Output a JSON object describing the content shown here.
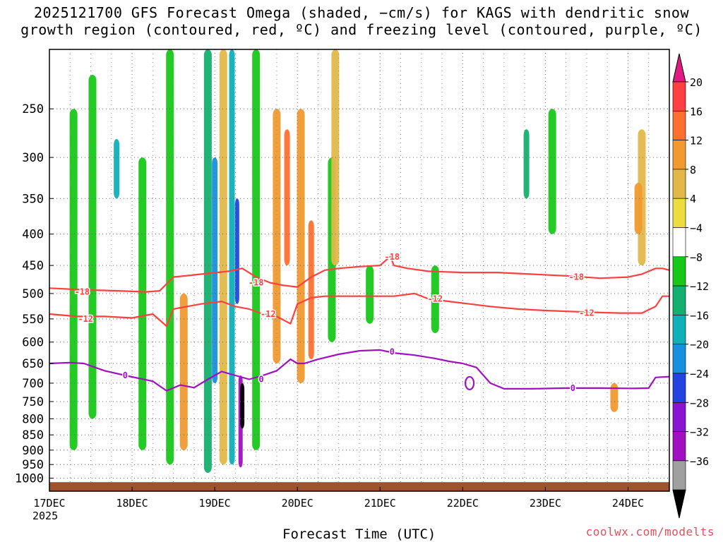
{
  "title_line1": "2025121700 GFS Forecast Omega (shaded, −cm/s) for KAGS with dendritic snow",
  "title_line2": "growth region (contoured, red, ºC) and freezing level (contoured, purple, ºC)",
  "credit": "coolwx.com/modelts",
  "chart_data": {
    "type": "heatmap",
    "title": "2025121700 GFS Forecast Omega (shaded, −cm/s) for KAGS with dendritic snow growth region (contoured, red, ºC) and freezing level (contoured, purple, ºC)",
    "xlabel": "Forecast Time (UTC)",
    "ylabel": "",
    "x_start": "17DEC 2025",
    "xlim_hours": [
      0,
      180
    ],
    "ylim_hpa": [
      1050,
      200
    ],
    "x_ticks": [
      {
        "label": "17DEC",
        "sublabel": "2025",
        "hour": 0
      },
      {
        "label": "18DEC",
        "hour": 24
      },
      {
        "label": "19DEC",
        "hour": 48
      },
      {
        "label": "20DEC",
        "hour": 72
      },
      {
        "label": "21DEC",
        "hour": 96
      },
      {
        "label": "22DEC",
        "hour": 120
      },
      {
        "label": "23DEC",
        "hour": 144
      },
      {
        "label": "24DEC",
        "hour": 168
      }
    ],
    "y_ticks": [
      250,
      300,
      350,
      400,
      450,
      500,
      550,
      600,
      650,
      700,
      750,
      800,
      850,
      900,
      950,
      1000
    ],
    "y_tick_labels": [
      "250",
      "300",
      "350",
      "400",
      "450",
      "500",
      "550",
      "600",
      "650",
      "700",
      "750",
      "800",
      "850",
      "900",
      "950",
      "1000"
    ],
    "grid": true,
    "colorbar": {
      "labels": [
        "20",
        "16",
        "12",
        "8",
        "4",
        "−4",
        "−8",
        "−12",
        "−16",
        "−20",
        "−24",
        "−28",
        "−32",
        "−36"
      ],
      "colors": [
        "#ff4040",
        "#ff7030",
        "#f09a30",
        "#e2b84a",
        "#ecdc40",
        "#ffffff",
        "#18c818",
        "#14b070",
        "#10b0b8",
        "#1890e0",
        "#2244e0",
        "#8a14d0",
        "#a010c0",
        "#a0a0a0"
      ],
      "top_arrow_color": "#e01a80",
      "bottom_arrow_color": "#000000"
    },
    "series": [
      {
        "name": "-18",
        "color": "#ff4040",
        "x": [
          0,
          10,
          20,
          28,
          32,
          36,
          44,
          52,
          56,
          60,
          64,
          68,
          72,
          76,
          80,
          84,
          90,
          96,
          99,
          100,
          104,
          110,
          120,
          130,
          140,
          150,
          160,
          168,
          172,
          176,
          178,
          180
        ],
        "y": [
          490,
          493,
          495,
          497,
          495,
          470,
          465,
          460,
          455,
          470,
          480,
          485,
          488,
          470,
          458,
          455,
          452,
          450,
          435,
          450,
          455,
          460,
          462,
          462,
          465,
          468,
          472,
          470,
          465,
          455,
          455,
          458
        ]
      },
      {
        "name": "-12",
        "color": "#ff4040",
        "x": [
          0,
          8,
          16,
          24,
          30,
          34,
          36,
          40,
          44,
          50,
          54,
          58,
          62,
          66,
          70,
          72,
          76,
          80,
          86,
          96,
          100,
          106,
          110,
          116,
          122,
          128,
          136,
          144,
          152,
          160,
          166,
          172,
          176,
          178,
          180
        ],
        "y": [
          540,
          545,
          545,
          548,
          540,
          565,
          530,
          525,
          520,
          515,
          525,
          530,
          540,
          545,
          560,
          520,
          508,
          505,
          505,
          505,
          505,
          500,
          510,
          515,
          520,
          525,
          530,
          533,
          535,
          537,
          538,
          538,
          525,
          505,
          505
        ]
      },
      {
        "name": "0",
        "color": "#a010c0",
        "x": [
          0,
          6,
          10,
          16,
          22,
          30,
          34,
          38,
          42,
          46,
          50,
          54,
          58,
          62,
          66,
          70,
          72,
          74,
          78,
          84,
          90,
          96,
          100,
          106,
          112,
          116,
          120,
          124,
          128,
          132,
          140,
          150,
          160,
          170,
          174,
          176,
          180
        ],
        "y": [
          650,
          648,
          650,
          668,
          680,
          695,
          720,
          705,
          712,
          690,
          670,
          680,
          690,
          680,
          668,
          640,
          650,
          650,
          640,
          628,
          620,
          618,
          625,
          630,
          638,
          645,
          650,
          660,
          700,
          715,
          715,
          713,
          713,
          714,
          713,
          685,
          683
        ]
      }
    ],
    "contour_labels": [
      {
        "text": "-18",
        "hour": 9.5,
        "hpa": 497
      },
      {
        "text": "-18",
        "hour": 60,
        "hpa": 480
      },
      {
        "text": "-18",
        "hour": 99.5,
        "hpa": 436
      },
      {
        "text": "-18",
        "hour": 153,
        "hpa": 470
      },
      {
        "text": "-12",
        "hour": 10.5,
        "hpa": 550
      },
      {
        "text": "-12",
        "hour": 63.5,
        "hpa": 540
      },
      {
        "text": "-12",
        "hour": 112,
        "hpa": 510
      },
      {
        "text": "-12",
        "hour": 156,
        "hpa": 538
      },
      {
        "text": "0",
        "hour": 22,
        "hpa": 680
      },
      {
        "text": "0",
        "hour": 61.5,
        "hpa": 690
      },
      {
        "text": "0",
        "hour": 99.5,
        "hpa": 622
      },
      {
        "text": "0",
        "hour": 152,
        "hpa": 713
      }
    ],
    "freezing_closed_contours": [
      {
        "hour": 122,
        "hpa": 700
      }
    ],
    "omega_regions": [
      {
        "hour": 7,
        "hpa": [
          250,
          900
        ],
        "value": -6
      },
      {
        "hour": 12.5,
        "hpa": [
          220,
          800
        ],
        "value": -6
      },
      {
        "hour": 19.5,
        "hpa": [
          280,
          350
        ],
        "value": -13
      },
      {
        "hour": 27,
        "hpa": [
          300,
          900
        ],
        "value": -6
      },
      {
        "hour": 35,
        "hpa": [
          200,
          950
        ],
        "value": -6
      },
      {
        "hour": 39,
        "hpa": [
          500,
          900
        ],
        "value": 10
      },
      {
        "hour": 46,
        "hpa": [
          200,
          980
        ],
        "value": -10
      },
      {
        "hour": 48,
        "hpa": [
          300,
          700
        ],
        "value": -18
      },
      {
        "hour": 50.5,
        "hpa": [
          200,
          950
        ],
        "value": 8
      },
      {
        "hour": 53,
        "hpa": [
          200,
          950
        ],
        "value": -14
      },
      {
        "hour": 54.5,
        "hpa": [
          350,
          520
        ],
        "value": -22
      },
      {
        "hour": 55.5,
        "hpa": [
          680,
          960
        ],
        "value": -30
      },
      {
        "hour": 56,
        "hpa": [
          700,
          830
        ],
        "value": -36
      },
      {
        "hour": 60,
        "hpa": [
          200,
          900
        ],
        "value": -6
      },
      {
        "hour": 66,
        "hpa": [
          250,
          650
        ],
        "value": 10
      },
      {
        "hour": 69,
        "hpa": [
          270,
          450
        ],
        "value": 16
      },
      {
        "hour": 73,
        "hpa": [
          250,
          700
        ],
        "value": 10
      },
      {
        "hour": 76,
        "hpa": [
          380,
          640
        ],
        "value": 16
      },
      {
        "hour": 82,
        "hpa": [
          300,
          600
        ],
        "value": -6
      },
      {
        "hour": 83,
        "hpa": [
          200,
          450
        ],
        "value": 8
      },
      {
        "hour": 93,
        "hpa": [
          450,
          560
        ],
        "value": -6
      },
      {
        "hour": 112,
        "hpa": [
          450,
          580
        ],
        "value": -6
      },
      {
        "hour": 146,
        "hpa": [
          250,
          400
        ],
        "value": -8
      },
      {
        "hour": 138.5,
        "hpa": [
          270,
          350
        ],
        "value": -12
      },
      {
        "hour": 172,
        "hpa": [
          270,
          450
        ],
        "value": 5
      },
      {
        "hour": 171,
        "hpa": [
          330,
          400
        ],
        "value": 9
      },
      {
        "hour": 164,
        "hpa": [
          700,
          780
        ],
        "value": 10
      }
    ]
  }
}
